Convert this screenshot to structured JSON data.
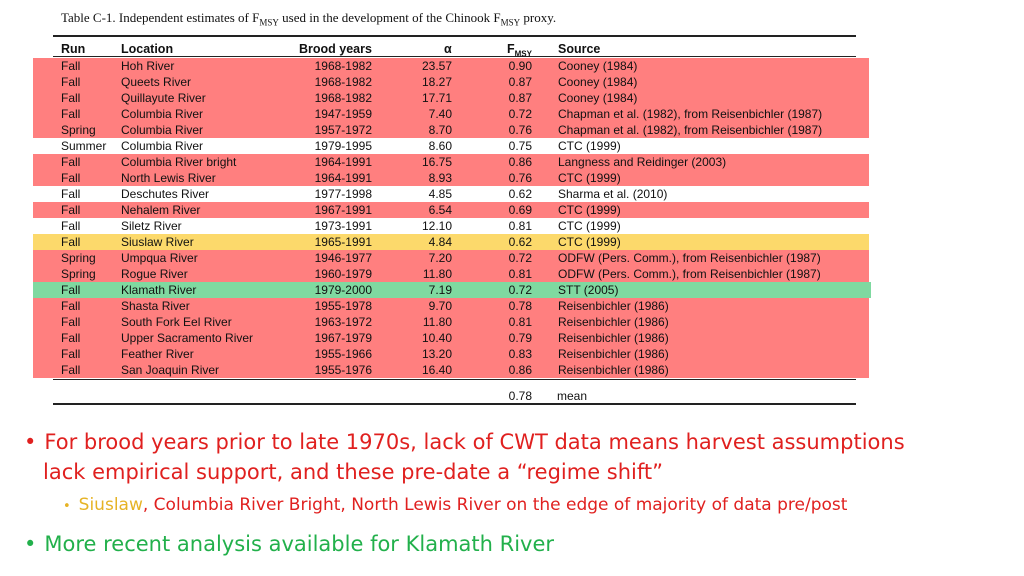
{
  "caption": {
    "prefix": "Table C-1.   Independent estimates of F",
    "sub1": "MSY",
    "middle": " used in the development of the Chinook F",
    "sub2": "MSY",
    "suffix": " proxy."
  },
  "table": {
    "headers": {
      "run": "Run",
      "location": "Location",
      "brood": "Brood years",
      "alpha": "α",
      "fmsy": "F",
      "fmsy_sub": "MSY",
      "source": "Source"
    },
    "rows": [
      {
        "run": "Fall",
        "location": "Hoh River",
        "brood": "1968-1982",
        "alpha": "23.57",
        "fmsy": "0.90",
        "source": "Cooney (1984)",
        "highlight": "red"
      },
      {
        "run": "Fall",
        "location": "Queets River",
        "brood": "1968-1982",
        "alpha": "18.27",
        "fmsy": "0.87",
        "source": "Cooney (1984)",
        "highlight": "red"
      },
      {
        "run": "Fall",
        "location": "Quillayute River",
        "brood": "1968-1982",
        "alpha": "17.71",
        "fmsy": "0.87",
        "source": "Cooney (1984)",
        "highlight": "red"
      },
      {
        "run": "Fall",
        "location": "Columbia River",
        "brood": "1947-1959",
        "alpha": "7.40",
        "fmsy": "0.72",
        "source": "Chapman et al. (1982), from Reisenbichler (1987)",
        "highlight": "red"
      },
      {
        "run": "Spring",
        "location": "Columbia River",
        "brood": "1957-1972",
        "alpha": "8.70",
        "fmsy": "0.76",
        "source": "Chapman et al. (1982), from Reisenbichler (1987)",
        "highlight": "red"
      },
      {
        "run": "Summer",
        "location": "Columbia River",
        "brood": "1979-1995",
        "alpha": "8.60",
        "fmsy": "0.75",
        "source": "CTC (1999)",
        "highlight": "none"
      },
      {
        "run": "Fall",
        "location": "Columbia River bright",
        "brood": "1964-1991",
        "alpha": "16.75",
        "fmsy": "0.86",
        "source": "Langness and Reidinger (2003)",
        "highlight": "red"
      },
      {
        "run": "Fall",
        "location": "North Lewis River",
        "brood": "1964-1991",
        "alpha": "8.93",
        "fmsy": "0.76",
        "source": "CTC (1999)",
        "highlight": "red"
      },
      {
        "run": "Fall",
        "location": "Deschutes River",
        "brood": "1977-1998",
        "alpha": "4.85",
        "fmsy": "0.62",
        "source": "Sharma et al. (2010)",
        "highlight": "none"
      },
      {
        "run": "Fall",
        "location": "Nehalem River",
        "brood": "1967-1991",
        "alpha": "6.54",
        "fmsy": "0.69",
        "source": "CTC (1999)",
        "highlight": "red"
      },
      {
        "run": "Fall",
        "location": "Siletz River",
        "brood": "1973-1991",
        "alpha": "12.10",
        "fmsy": "0.81",
        "source": "CTC (1999)",
        "highlight": "none"
      },
      {
        "run": "Fall",
        "location": "Siuslaw River",
        "brood": "1965-1991",
        "alpha": "4.84",
        "fmsy": "0.62",
        "source": "CTC (1999)",
        "highlight": "yellow"
      },
      {
        "run": "Spring",
        "location": "Umpqua River",
        "brood": "1946-1977",
        "alpha": "7.20",
        "fmsy": "0.72",
        "source": "ODFW (Pers. Comm.),  from Reisenbichler (1987)",
        "highlight": "red"
      },
      {
        "run": "Spring",
        "location": "Rogue River",
        "brood": "1960-1979",
        "alpha": "11.80",
        "fmsy": "0.81",
        "source": "ODFW (Pers. Comm.),  from Reisenbichler (1987)",
        "highlight": "red"
      },
      {
        "run": "Fall",
        "location": "Klamath River",
        "brood": "1979-2000",
        "alpha": "7.19",
        "fmsy": "0.72",
        "source": "STT (2005)",
        "highlight": "green"
      },
      {
        "run": "Fall",
        "location": "Shasta River",
        "brood": "1955-1978",
        "alpha": "9.70",
        "fmsy": "0.78",
        "source": "Reisenbichler (1986)",
        "highlight": "red"
      },
      {
        "run": "Fall",
        "location": "South Fork Eel River",
        "brood": "1963-1972",
        "alpha": "11.80",
        "fmsy": "0.81",
        "source": "Reisenbichler (1986)",
        "highlight": "red"
      },
      {
        "run": "Fall",
        "location": "Upper Sacramento River",
        "brood": "1967-1979",
        "alpha": "10.40",
        "fmsy": "0.79",
        "source": "Reisenbichler (1986)",
        "highlight": "red"
      },
      {
        "run": "Fall",
        "location": "Feather River",
        "brood": "1955-1966",
        "alpha": "13.20",
        "fmsy": "0.83",
        "source": "Reisenbichler (1986)",
        "highlight": "red"
      },
      {
        "run": "Fall",
        "location": "San Joaquin River",
        "brood": "1955-1976",
        "alpha": "16.40",
        "fmsy": "0.86",
        "source": "Reisenbichler (1986)",
        "highlight": "red"
      }
    ],
    "mean_value": "0.78",
    "mean_label": "mean"
  },
  "highlight_colors": {
    "red": "#ff7f7f",
    "yellow": "#fcd96b",
    "green": "#7fd9a0"
  },
  "bullets": {
    "b1": "For brood years prior to late 1970s, lack of CWT data means harvest assumptions",
    "b1_cont": "lack empirical support, and these pre-date a “regime shift”",
    "b1_sub_a": "Siuslaw",
    "b1_sub_b": ", Columbia River Bright, North Lewis River on the edge of majority of data pre/post",
    "b2": "More recent analysis available for Klamath River",
    "bullet_glyph": "•",
    "red": "#e0201f",
    "gold": "#e6b325",
    "green": "#22b04b"
  }
}
